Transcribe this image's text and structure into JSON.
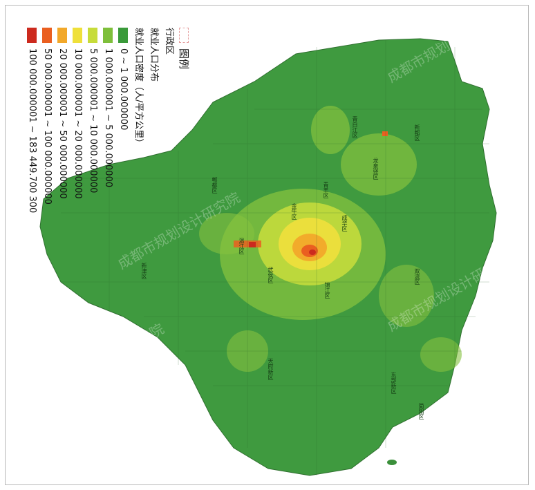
{
  "legend": {
    "title": "图例",
    "boundary_label": "行政区",
    "layer_label": "就业人口分布",
    "field_label": "就业人口密度（人/平方公里）",
    "classes": [
      {
        "label": "0 ~ 1 000.000000",
        "color": "#3a9a3a"
      },
      {
        "label": "1 000.000001 ~ 5 000.000000",
        "color": "#7ebf3a"
      },
      {
        "label": "5 000.000001 ~ 10 000.000000",
        "color": "#c7dc3a"
      },
      {
        "label": "10 000.000001 ~ 20 000.000000",
        "color": "#efe03a"
      },
      {
        "label": "20 000.000001 ~ 50 000.000000",
        "color": "#f2a82a"
      },
      {
        "label": "50 000.000001 ~ 100 000.000000",
        "color": "#ea5f20"
      },
      {
        "label": "100 000.000001 ~ 183 449.700 300",
        "color": "#cc2a1e"
      }
    ]
  },
  "districts": [
    "新都区",
    "青白江区",
    "郫都区",
    "温江区",
    "金牛区",
    "成华区",
    "青羊区",
    "武侯区",
    "锦江区",
    "龙泉驿区",
    "双流区",
    "新津区",
    "天府新区",
    "东部新区",
    "简阳区"
  ],
  "watermark": "成都市规划设计研究院",
  "footer": "成都市规划设计研究院"
}
